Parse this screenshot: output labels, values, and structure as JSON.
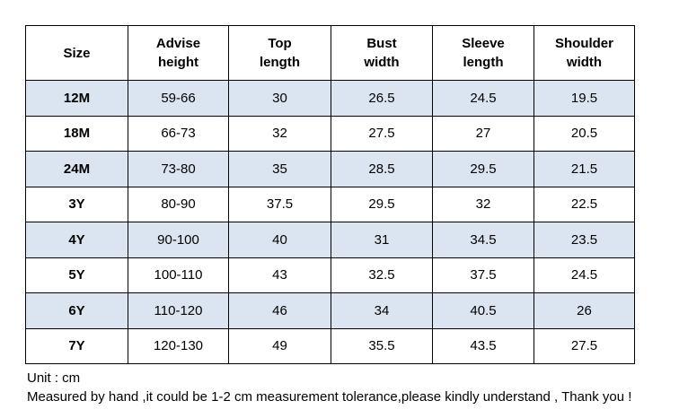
{
  "table": {
    "header": [
      [
        "Size"
      ],
      [
        "Advise",
        "height"
      ],
      [
        "Top",
        "length"
      ],
      [
        "Bust",
        "width"
      ],
      [
        "Sleeve",
        "length"
      ],
      [
        "Shoulder",
        "width"
      ]
    ],
    "rows": [
      [
        "12M",
        "59-66",
        "30",
        "26.5",
        "24.5",
        "19.5"
      ],
      [
        "18M",
        "66-73",
        "32",
        "27.5",
        "27",
        "20.5"
      ],
      [
        "24M",
        "73-80",
        "35",
        "28.5",
        "29.5",
        "21.5"
      ],
      [
        "3Y",
        "80-90",
        "37.5",
        "29.5",
        "32",
        "22.5"
      ],
      [
        "4Y",
        "90-100",
        "40",
        "31",
        "34.5",
        "23.5"
      ],
      [
        "5Y",
        "100-110",
        "43",
        "32.5",
        "37.5",
        "24.5"
      ],
      [
        "6Y",
        "110-120",
        "46",
        "34",
        "40.5",
        "26"
      ],
      [
        "7Y",
        "120-130",
        "49",
        "35.5",
        "43.5",
        "27.5"
      ]
    ]
  },
  "notes": [
    "Unit : cm",
    "Measured by hand ,it could be 1-2 cm measurement tolerance,please kindly understand , Thank you !"
  ]
}
